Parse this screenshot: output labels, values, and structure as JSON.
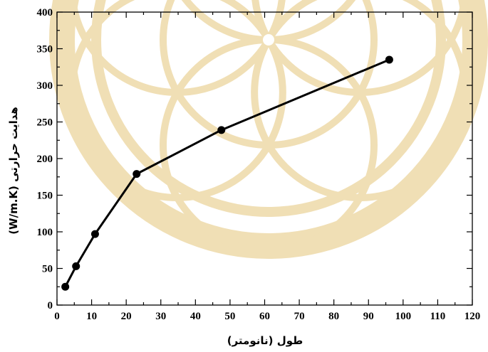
{
  "chart_data": {
    "type": "line",
    "title": "",
    "xlabel": "طول (نانومتر)",
    "ylabel": "هدایت حرارتی (W/m.K)",
    "xlim": [
      0,
      120
    ],
    "ylim": [
      0,
      400
    ],
    "x_ticks": [
      0,
      10,
      20,
      30,
      40,
      50,
      60,
      70,
      80,
      90,
      100,
      110,
      120
    ],
    "y_ticks": [
      0,
      50,
      100,
      150,
      200,
      250,
      300,
      350,
      400
    ],
    "grid": false,
    "legend": "none",
    "series": [
      {
        "x": [
          2.4,
          5.5,
          11,
          23,
          47.5,
          96
        ],
        "y": [
          25,
          53,
          97,
          179,
          239,
          335
        ],
        "color": "#000000",
        "marker": "circle"
      }
    ]
  },
  "watermark": {
    "color": "#f0dfb5"
  }
}
